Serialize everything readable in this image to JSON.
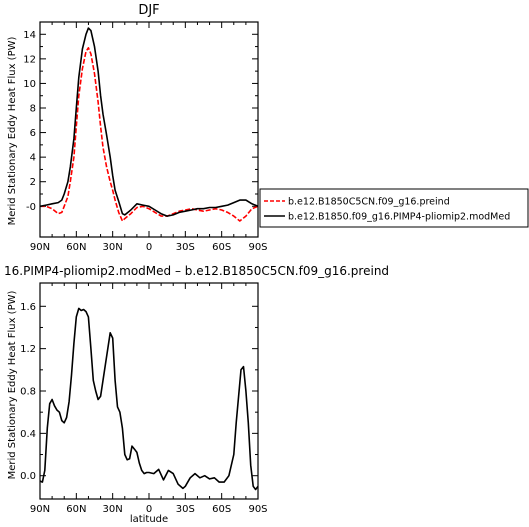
{
  "chart_data": [
    {
      "type": "line",
      "title": "DJF",
      "xlabel": "",
      "ylabel": "Merid Stationary Eddy Heat Flux (PW)",
      "x_tick_labels": [
        "90N",
        "60N",
        "30N",
        "0",
        "30S",
        "60S",
        "90S"
      ],
      "x_tick_values": [
        90,
        60,
        30,
        0,
        -30,
        -60,
        -90
      ],
      "xlim": [
        90,
        -90
      ],
      "ylim": [
        -2.5,
        15
      ],
      "y_tick_labels": [
        "-0",
        "2",
        "4",
        "6",
        "8",
        "10",
        "12",
        "14"
      ],
      "y_tick_values": [
        0,
        2,
        4,
        6,
        8,
        10,
        12,
        14
      ],
      "legend": {
        "placement": "right",
        "entries": [
          {
            "label": "b.e12.B1850C5CN.f09_g16.preind",
            "color": "#ff0000",
            "dash": "dashed"
          },
          {
            "label": "b.e12.B1850.f09_g16.PIMP4-pliomip2.modMed",
            "color": "#000000",
            "dash": "solid"
          }
        ]
      },
      "series": [
        {
          "name": "b.e12.B1850C5CN.f09_g16.preind",
          "color": "#ff0000",
          "dash": "dashed",
          "x": [
            90,
            85,
            80,
            75,
            72,
            70,
            67,
            65,
            62,
            60,
            58,
            55,
            52,
            50,
            48,
            45,
            42,
            40,
            38,
            35,
            32,
            30,
            28,
            25,
            22,
            20,
            15,
            10,
            5,
            0,
            -5,
            -10,
            -15,
            -20,
            -25,
            -30,
            -35,
            -40,
            -45,
            -50,
            -55,
            -60,
            -65,
            -70,
            -75,
            -80,
            -85,
            -90
          ],
          "y": [
            0,
            0,
            -0.2,
            -0.6,
            -0.5,
            0,
            0.8,
            2.0,
            4.0,
            6.5,
            9.0,
            11.2,
            12.6,
            12.9,
            12.4,
            10.8,
            8.5,
            6.5,
            4.8,
            3.2,
            2.0,
            1.3,
            0.5,
            -0.5,
            -1.2,
            -1.0,
            -0.6,
            -0.1,
            0,
            -0.2,
            -0.5,
            -0.8,
            -0.8,
            -0.6,
            -0.4,
            -0.3,
            -0.2,
            -0.3,
            -0.4,
            -0.3,
            -0.2,
            -0.3,
            -0.5,
            -0.8,
            -1.2,
            -0.8,
            -0.2,
            0
          ]
        },
        {
          "name": "b.e12.B1850.f09_g16.PIMP4-pliomip2.modMed",
          "color": "#000000",
          "dash": "solid",
          "x": [
            90,
            85,
            80,
            75,
            72,
            70,
            67,
            65,
            62,
            60,
            58,
            55,
            52,
            50,
            48,
            45,
            42,
            40,
            38,
            35,
            32,
            30,
            28,
            25,
            22,
            20,
            15,
            10,
            5,
            0,
            -5,
            -10,
            -15,
            -20,
            -25,
            -30,
            -35,
            -40,
            -45,
            -50,
            -55,
            -60,
            -65,
            -70,
            -75,
            -80,
            -85,
            -90
          ],
          "y": [
            0,
            0.1,
            0.2,
            0.3,
            0.5,
            1.0,
            2.0,
            3.2,
            5.5,
            8.0,
            10.5,
            12.8,
            14.0,
            14.5,
            14.3,
            13.0,
            11.0,
            9.0,
            7.5,
            5.8,
            4.0,
            2.5,
            1.3,
            0.4,
            -0.6,
            -0.7,
            -0.3,
            0.2,
            0.1,
            0,
            -0.3,
            -0.6,
            -0.8,
            -0.7,
            -0.5,
            -0.4,
            -0.3,
            -0.2,
            -0.2,
            -0.1,
            -0.1,
            0,
            0.1,
            0.3,
            0.5,
            0.5,
            0.2,
            0
          ]
        }
      ]
    },
    {
      "type": "line",
      "title": "16.PIMP4-pliomip2.modMed – b.e12.B1850C5CN.f09_g16.preind",
      "xlabel": "latitude",
      "ylabel": "Merid Stationary Eddy Heat Flux (PW)",
      "x_tick_labels": [
        "90N",
        "60N",
        "30N",
        "0",
        "30S",
        "60S",
        "90S"
      ],
      "x_tick_values": [
        90,
        60,
        30,
        0,
        -30,
        -60,
        -90
      ],
      "xlim": [
        90,
        -90
      ],
      "ylim": [
        -0.22,
        1.82
      ],
      "y_tick_labels": [
        "0.0",
        "0.4",
        "0.8",
        "1.2",
        "1.6"
      ],
      "y_tick_values": [
        0,
        0.4,
        0.8,
        1.2,
        1.6
      ],
      "series": [
        {
          "name": "",
          "color": "#000000",
          "dash": "solid",
          "x": [
            90,
            88,
            86,
            84,
            82,
            80,
            78,
            76,
            74,
            72,
            70,
            68,
            66,
            64,
            62,
            60,
            58,
            56,
            54,
            52,
            50,
            48,
            46,
            44,
            42,
            40,
            38,
            36,
            34,
            32,
            30,
            28,
            26,
            24,
            22,
            20,
            18,
            16,
            14,
            12,
            10,
            8,
            6,
            4,
            2,
            0,
            -4,
            -8,
            -12,
            -16,
            -20,
            -24,
            -28,
            -30,
            -34,
            -38,
            -42,
            -46,
            -50,
            -54,
            -58,
            -62,
            -66,
            -70,
            -72,
            -74,
            -76,
            -78,
            -80,
            -82,
            -84,
            -86,
            -88,
            -90
          ],
          "y": [
            -0.05,
            -0.06,
            0.05,
            0.45,
            0.68,
            0.72,
            0.66,
            0.62,
            0.6,
            0.52,
            0.5,
            0.55,
            0.7,
            0.95,
            1.25,
            1.5,
            1.58,
            1.56,
            1.57,
            1.55,
            1.5,
            1.2,
            0.9,
            0.8,
            0.72,
            0.75,
            0.9,
            1.05,
            1.2,
            1.35,
            1.3,
            0.9,
            0.65,
            0.6,
            0.45,
            0.2,
            0.15,
            0.16,
            0.28,
            0.25,
            0.22,
            0.12,
            0.05,
            0.02,
            0.03,
            0.03,
            0.02,
            0.06,
            -0.04,
            0.05,
            0.02,
            -0.08,
            -0.12,
            -0.1,
            -0.02,
            0.02,
            -0.02,
            0.0,
            -0.03,
            -0.02,
            -0.06,
            -0.06,
            0.0,
            0.2,
            0.5,
            0.75,
            1.0,
            1.03,
            0.8,
            0.5,
            0.1,
            -0.1,
            -0.13,
            -0.1
          ]
        }
      ]
    }
  ]
}
